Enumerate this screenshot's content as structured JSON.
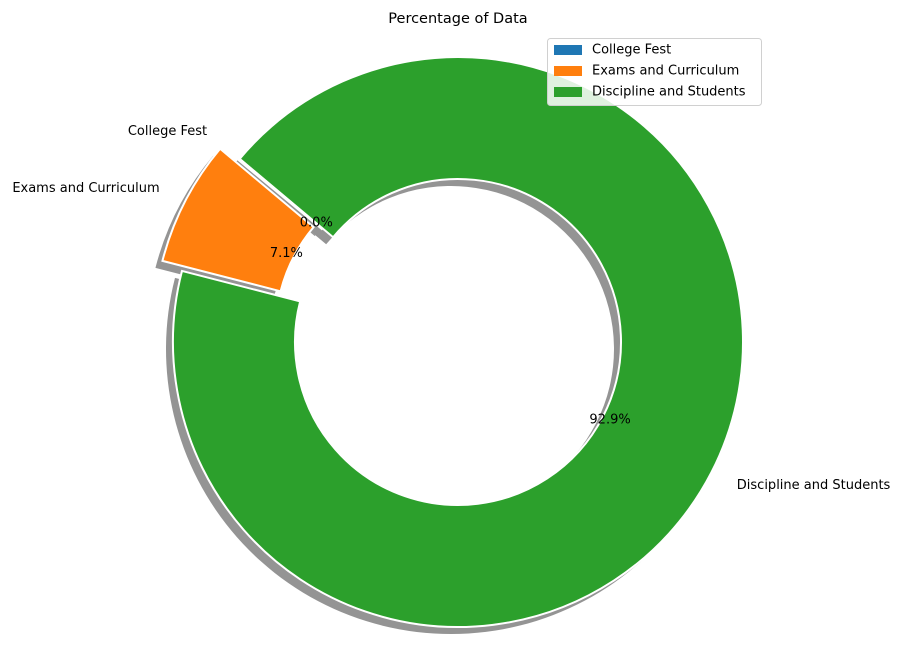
{
  "chart_data": {
    "type": "pie",
    "variant": "donut",
    "title": "Percentage of Data",
    "categories": [
      "College Fest",
      "Exams and Curriculum",
      "Discipline and Students"
    ],
    "values": [
      0.0,
      7.1,
      92.9
    ],
    "percent_labels": [
      "0.0%",
      "7.1%",
      "92.9%"
    ],
    "colors": [
      "#1f77b4",
      "#ff7f0e",
      "#2ca02c"
    ],
    "exploded": [
      true,
      true,
      false
    ],
    "shadow": true,
    "legend": {
      "placement": "top-right",
      "entries": [
        "College Fest",
        "Exams and Curriculum",
        "Discipline and Students"
      ]
    }
  }
}
